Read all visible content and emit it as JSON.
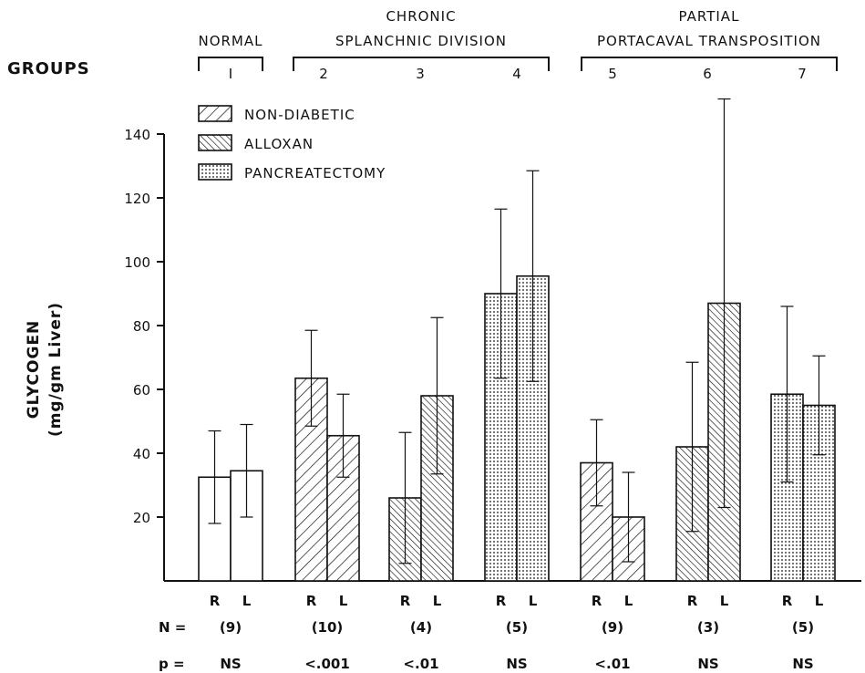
{
  "chart_data": {
    "type": "bar",
    "groups_label": "GROUPS",
    "ylabel_line1": "GLYCOGEN",
    "ylabel_line2": "(mg/gm Liver)",
    "ylim": [
      0,
      150
    ],
    "yticks": [
      20,
      40,
      60,
      80,
      100,
      120,
      140
    ],
    "grid": false,
    "legend_position": "top-left",
    "header_sections": [
      {
        "lines": [
          "NORMAL"
        ],
        "groups": [
          1
        ]
      },
      {
        "lines": [
          "CHRONIC",
          "SPLANCHNIC  DIVISION"
        ],
        "groups": [
          2,
          3,
          4
        ]
      },
      {
        "lines": [
          "PARTIAL",
          "PORTACAVAL  TRANSPOSITION"
        ],
        "groups": [
          5,
          6,
          7
        ]
      }
    ],
    "legend": [
      {
        "label": "NON-DIABETIC",
        "pattern": "hatch-forward"
      },
      {
        "label": "ALLOXAN",
        "pattern": "hatch-back"
      },
      {
        "label": "PANCREATECTOMY",
        "pattern": "dots"
      }
    ],
    "n_label": "N =",
    "p_label": "p =",
    "groups": [
      {
        "number": "I",
        "pattern": "none",
        "R": 32.5,
        "R_err": 14.5,
        "L": 34.5,
        "L_err": 14.5,
        "N": "(9)",
        "p": "NS"
      },
      {
        "number": "2",
        "pattern": "hatch-forward",
        "R": 63.5,
        "R_err": 15,
        "L": 45.5,
        "L_err": 13,
        "N": "(10)",
        "p": "<.001"
      },
      {
        "number": "3",
        "pattern": "hatch-back",
        "R": 26,
        "R_err": 20.5,
        "L": 58,
        "L_err": 24.5,
        "N": "(4)",
        "p": "<.01"
      },
      {
        "number": "4",
        "pattern": "dots",
        "R": 90,
        "R_err": 26.5,
        "L": 95.5,
        "L_err": 33,
        "N": "(5)",
        "p": "NS"
      },
      {
        "number": "5",
        "pattern": "hatch-forward",
        "R": 37,
        "R_err": 13.5,
        "L": 20,
        "L_err": 14,
        "N": "(9)",
        "p": "<.01"
      },
      {
        "number": "6",
        "pattern": "hatch-back",
        "R": 42,
        "R_err": 26.5,
        "L": 87,
        "L_err": 64,
        "N": "(3)",
        "p": "NS"
      },
      {
        "number": "7",
        "pattern": "dots",
        "R": 58.5,
        "R_err": 27.5,
        "L": 55,
        "L_err": 15.5,
        "N": "(5)",
        "p": "NS"
      }
    ],
    "bar_labels": [
      "R",
      "L"
    ]
  }
}
